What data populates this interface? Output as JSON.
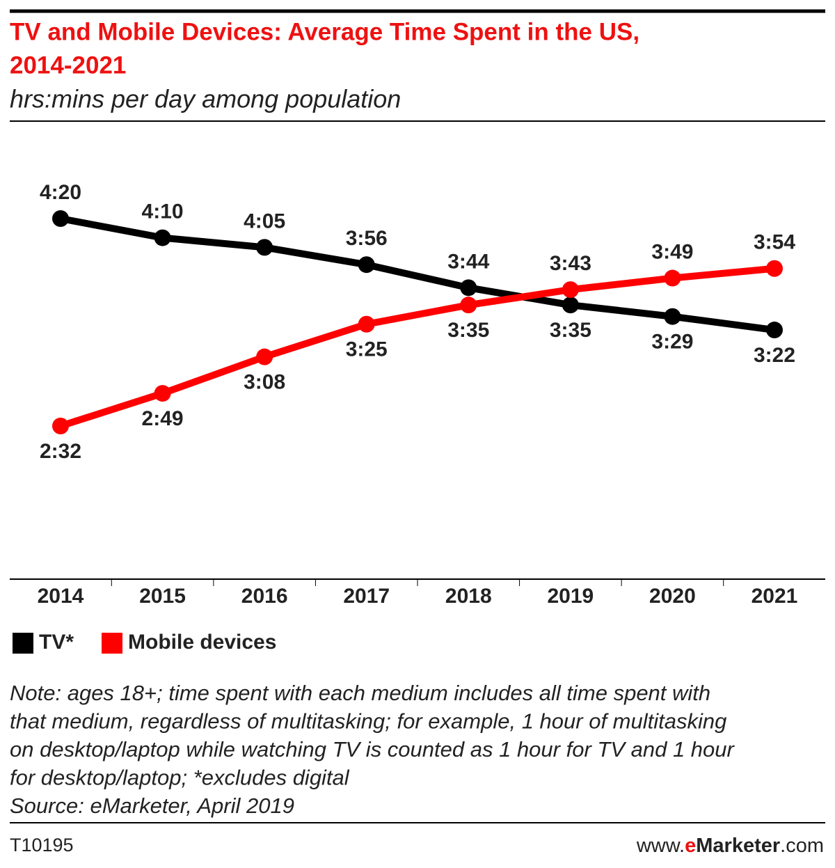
{
  "chart_data": {
    "type": "line",
    "title": [
      "TV and Mobile Devices: Average Time Spent in the US,",
      "2014-2021"
    ],
    "subtitle": "hrs:mins per day among population",
    "categories": [
      "2014",
      "2015",
      "2016",
      "2017",
      "2018",
      "2019",
      "2020",
      "2021"
    ],
    "series": [
      {
        "name": "TV*",
        "color": "#000000",
        "values": [
          260,
          250,
          245,
          236,
          224,
          215,
          209,
          202
        ],
        "value_labels": [
          "4:20",
          "4:10",
          "4:05",
          "3:56",
          "3:44",
          "3:35",
          "3:29",
          "3:22"
        ]
      },
      {
        "name": "Mobile devices",
        "color": "#ff0000",
        "values": [
          152,
          169,
          188,
          205,
          215,
          223,
          229,
          234
        ],
        "value_labels": [
          "2:32",
          "2:49",
          "3:08",
          "3:25",
          "3:35",
          "3:43",
          "3:49",
          "3:54"
        ]
      }
    ],
    "note": [
      "Note: ages 18+; time spent with each medium includes all time spent with",
      "that medium, regardless of multitasking; for example, 1 hour of multitasking",
      "on desktop/laptop while watching TV is counted as 1 hour for TV and 1 hour",
      "for desktop/laptop; *excludes digital",
      "Source: eMarketer, April 2019"
    ],
    "footer_id": "T10195",
    "website": [
      "www.",
      "e",
      "Marketer",
      ".com"
    ]
  }
}
